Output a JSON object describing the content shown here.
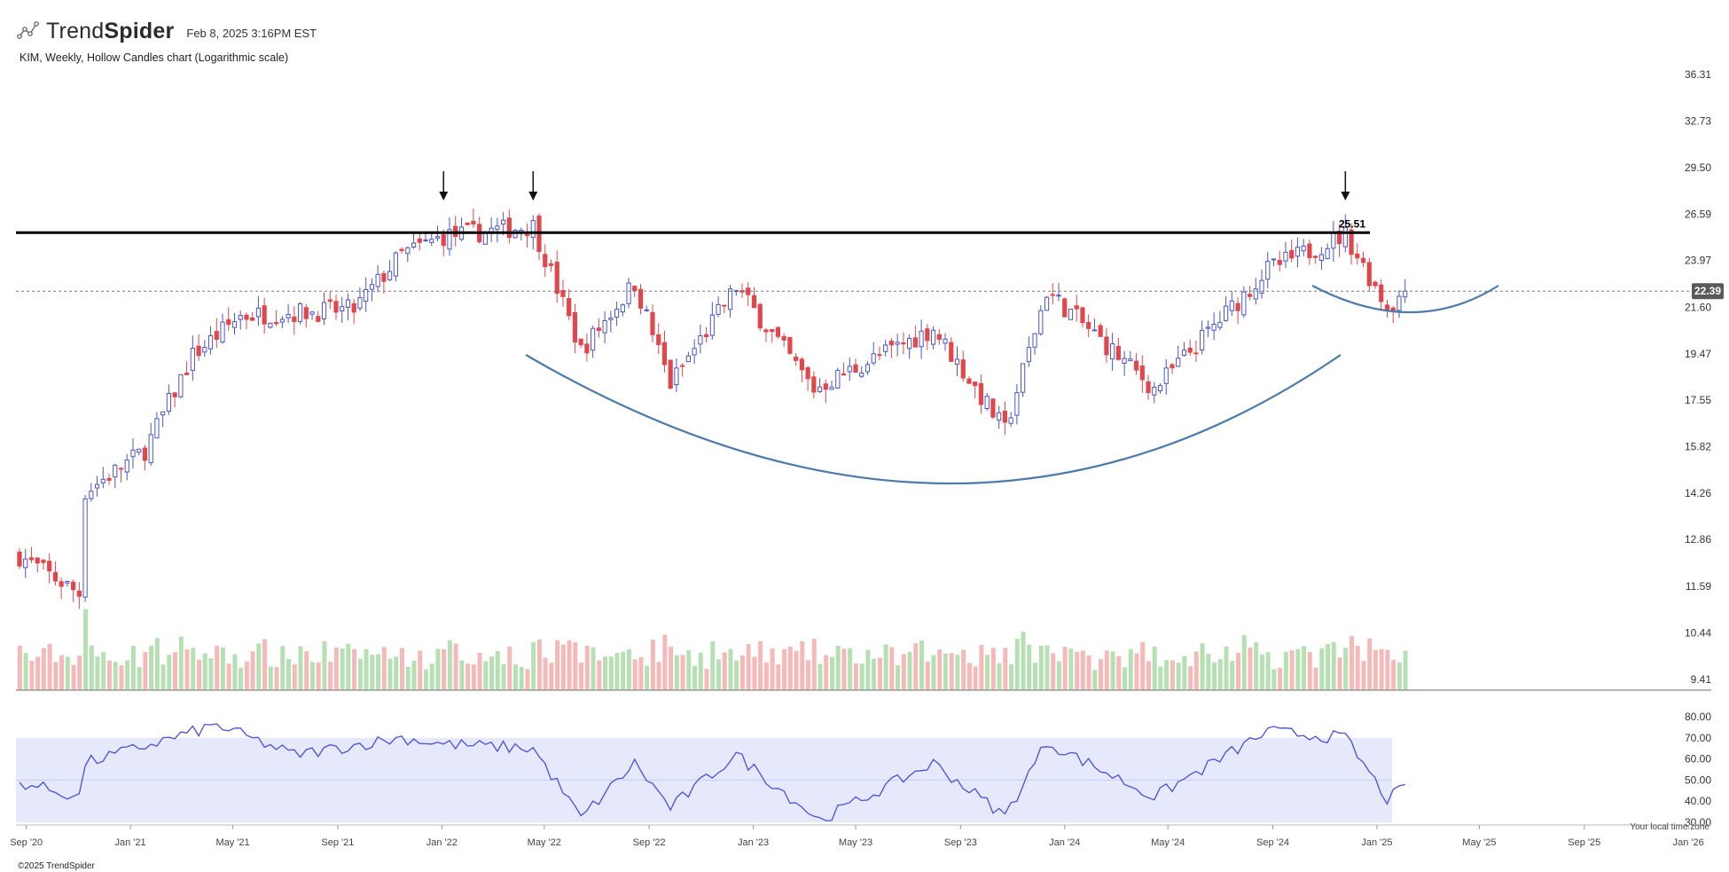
{
  "header": {
    "brand_prefix": "Trend",
    "brand_suffix": "Spider",
    "timestamp": "Feb 8, 2025 3:16PM EST",
    "chart_description": "KIM, Weekly, Hollow Candles chart (Logarithmic scale)"
  },
  "footer": {
    "copyright": "©2025 TrendSpider",
    "timezone_label": "Your local time zone"
  },
  "colors": {
    "up": "#4a56c8",
    "down": "#e0474c",
    "vol_up": "#b6e0b4",
    "vol_down": "#f6b9b9",
    "rsi_line": "#4a4fd6",
    "rsi_band": "#e6e9fb",
    "curve": "#4d7aa8",
    "resistance": "#000000"
  },
  "chart_data": [
    {
      "type": "candlestick",
      "name": "price",
      "scale": "log",
      "ylim": [
        9.0,
        36.31
      ],
      "y_ticks": [
        "36.31",
        "32.73",
        "29.50",
        "26.59",
        "23.97",
        "21.60",
        "19.47",
        "17.55",
        "15.82",
        "14.26",
        "12.86",
        "11.59",
        "10.44",
        "9.41"
      ],
      "x_ticks": [
        "Sep '20",
        "Jan '21",
        "May '21",
        "Sep '21",
        "Jan '22",
        "May '22",
        "Sep '22",
        "Jan '23",
        "May '23",
        "Sep '23",
        "Jan '24",
        "May '24",
        "Sep '24",
        "Jan '25",
        "May '25",
        "Sep '25",
        "Jan '26"
      ],
      "resistance_level": 25.51,
      "resistance_label": "25.51",
      "last_price": 22.39,
      "last_price_label": "22.39",
      "key_points": [
        {
          "date": "2020-08-24",
          "close": 12.4
        },
        {
          "date": "2020-11-02",
          "close": 11.4
        },
        {
          "date": "2020-11-09",
          "close": 14.3
        },
        {
          "date": "2021-01-18",
          "close": 15.7
        },
        {
          "date": "2021-03-15",
          "close": 19.4
        },
        {
          "date": "2021-05-10",
          "close": 21.2
        },
        {
          "date": "2021-09-20",
          "close": 21.5
        },
        {
          "date": "2021-11-15",
          "close": 24.3
        },
        {
          "date": "2022-01-03",
          "close": 25.3
        },
        {
          "date": "2022-04-18",
          "close": 25.9
        },
        {
          "date": "2022-06-13",
          "close": 19.6
        },
        {
          "date": "2022-08-15",
          "close": 22.8
        },
        {
          "date": "2022-09-26",
          "close": 18.2
        },
        {
          "date": "2022-12-12",
          "close": 22.6
        },
        {
          "date": "2023-03-13",
          "close": 18.0
        },
        {
          "date": "2023-07-31",
          "close": 20.6
        },
        {
          "date": "2023-10-23",
          "close": 16.4
        },
        {
          "date": "2023-12-11",
          "close": 22.4
        },
        {
          "date": "2024-04-15",
          "close": 18.0
        },
        {
          "date": "2024-08-26",
          "close": 23.5
        },
        {
          "date": "2024-11-25",
          "close": 25.4
        },
        {
          "date": "2025-01-13",
          "close": 21.6
        },
        {
          "date": "2025-02-07",
          "close": 22.39
        }
      ],
      "markers": [
        {
          "date": "2022-01-03"
        },
        {
          "date": "2022-04-18"
        },
        {
          "date": "2024-11-25"
        }
      ]
    },
    {
      "type": "bar",
      "name": "volume",
      "description_values": "relative weekly volume shown as green/red bars"
    },
    {
      "type": "line",
      "name": "rsi",
      "ylim": [
        30,
        80
      ],
      "band": [
        30,
        70
      ],
      "y_ticks": [
        "80.00",
        "70.00",
        "60.00",
        "50.00",
        "40.00",
        "30.00"
      ],
      "key_points": [
        {
          "date": "2020-08-24",
          "value": 49
        },
        {
          "date": "2020-11-02",
          "value": 42
        },
        {
          "date": "2020-11-09",
          "value": 58
        },
        {
          "date": "2021-04-12",
          "value": 76
        },
        {
          "date": "2021-07-12",
          "value": 62
        },
        {
          "date": "2021-11-15",
          "value": 70
        },
        {
          "date": "2022-01-03",
          "value": 67
        },
        {
          "date": "2022-04-18",
          "value": 65
        },
        {
          "date": "2022-06-13",
          "value": 32
        },
        {
          "date": "2022-08-15",
          "value": 58
        },
        {
          "date": "2022-09-26",
          "value": 37
        },
        {
          "date": "2022-12-12",
          "value": 62
        },
        {
          "date": "2023-03-20",
          "value": 31
        },
        {
          "date": "2023-07-31",
          "value": 58
        },
        {
          "date": "2023-10-23",
          "value": 33
        },
        {
          "date": "2023-12-11",
          "value": 68
        },
        {
          "date": "2024-04-15",
          "value": 42
        },
        {
          "date": "2024-08-26",
          "value": 73
        },
        {
          "date": "2024-11-25",
          "value": 70
        },
        {
          "date": "2025-01-13",
          "value": 41
        },
        {
          "date": "2025-02-07",
          "value": 47
        }
      ]
    }
  ]
}
